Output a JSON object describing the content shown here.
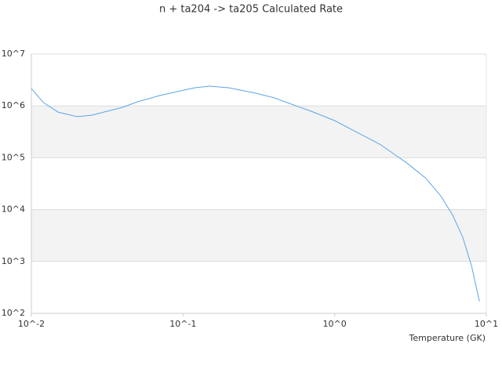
{
  "chart_data": {
    "type": "line",
    "title": "n + ta204 -> ta205 Calculated Rate",
    "x_label": "Temperature (GK)",
    "xscale": "log",
    "yscale": "log",
    "grid": true,
    "bands": true,
    "xlim": [
      0.01,
      10
    ],
    "ylim": [
      100,
      10000000
    ],
    "xticks": [
      {
        "value": 0.01,
        "label": "10^-2"
      },
      {
        "value": 0.1,
        "label": "10^-1"
      },
      {
        "value": 1,
        "label": "10^0"
      },
      {
        "value": 10,
        "label": "10^1"
      }
    ],
    "yticks": [
      {
        "value": 100,
        "label": "10^2"
      },
      {
        "value": 1000,
        "label": "10^3"
      },
      {
        "value": 10000,
        "label": "10^4"
      },
      {
        "value": 100000,
        "label": "10^5"
      },
      {
        "value": 1000000,
        "label": "10^6"
      },
      {
        "value": 10000000,
        "label": "10^7"
      }
    ],
    "x": [
      0.01,
      0.012,
      0.015,
      0.02,
      0.025,
      0.03,
      0.04,
      0.05,
      0.07,
      0.1,
      0.12,
      0.15,
      0.2,
      0.3,
      0.4,
      0.5,
      0.7,
      1,
      1.5,
      2,
      3,
      4,
      5,
      6,
      7,
      8,
      9
    ],
    "series": [
      {
        "color": "#5da5e8",
        "values": [
          2160000,
          1160000,
          760000,
          620000,
          660000,
          760000,
          940000,
          1200000,
          1580000,
          2000000,
          2240000,
          2400000,
          2240000,
          1760000,
          1430000,
          1120000,
          790000,
          520000,
          280000,
          180000,
          79000,
          40000,
          18500,
          7800,
          2900,
          810,
          170
        ]
      }
    ]
  }
}
